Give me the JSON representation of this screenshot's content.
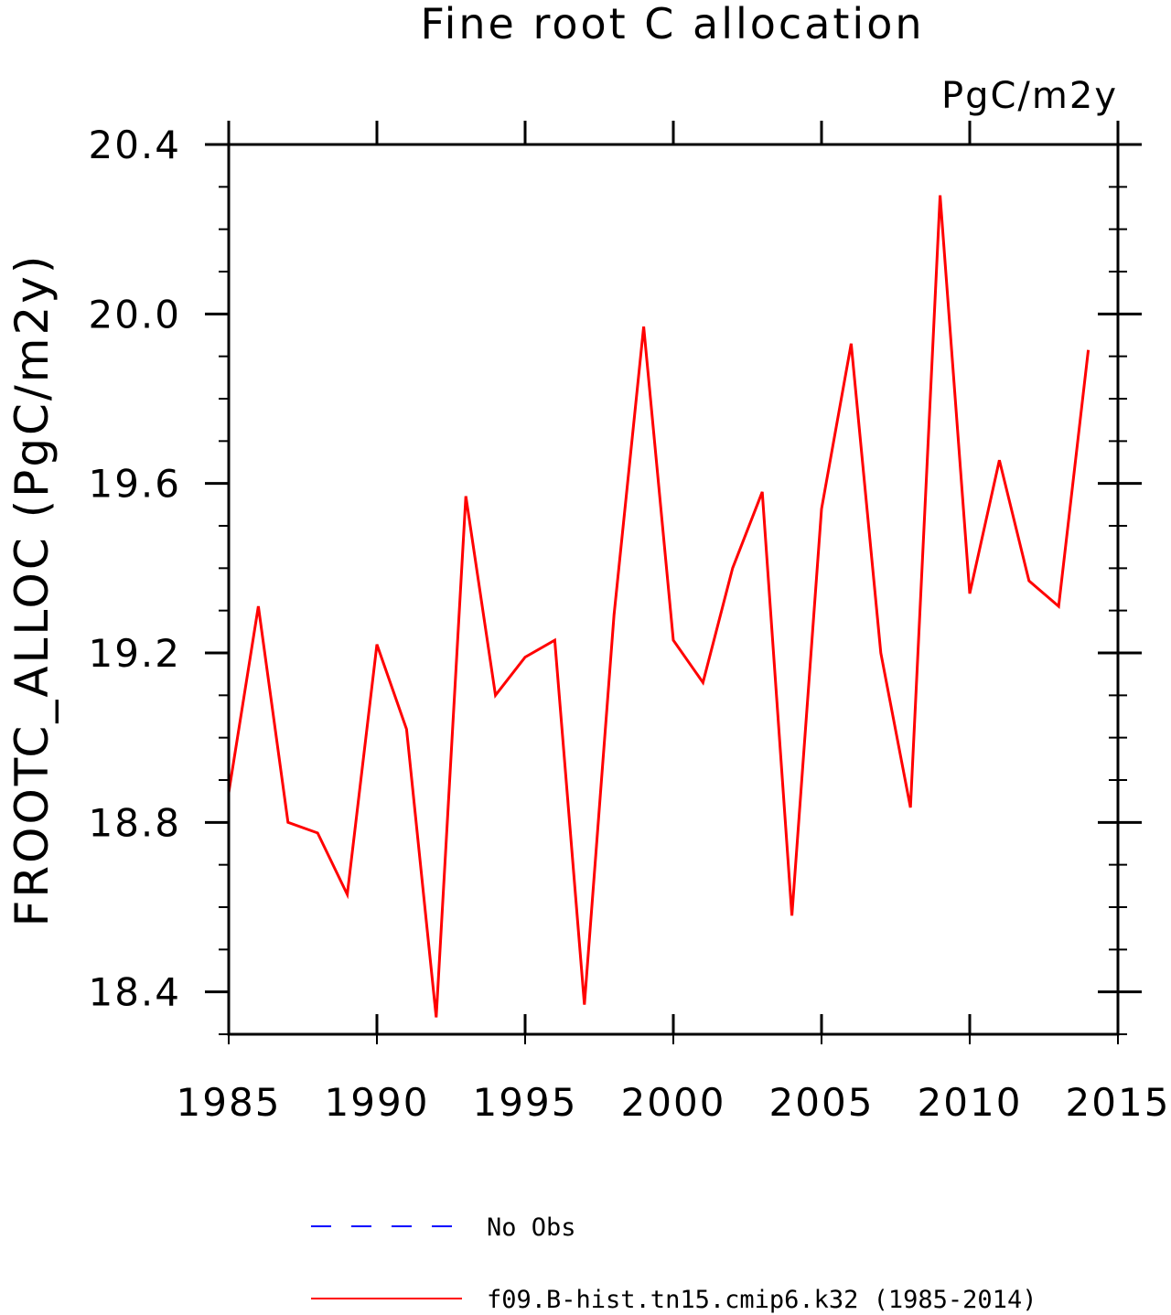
{
  "chart_data": {
    "type": "line",
    "title": "Fine root C allocation",
    "units": "PgC/m2y",
    "ylabel": "FROOTC_ALLOC  (PgC/m2y)",
    "xlabel": "",
    "xlim": [
      1985,
      2015
    ],
    "ylim": [
      18.3,
      20.4
    ],
    "x_ticks": [
      1985,
      1990,
      1995,
      2000,
      2005,
      2010,
      2015
    ],
    "x_tick_labels": [
      "1985",
      "1990",
      "1995",
      "2000",
      "2005",
      "2010",
      "2015"
    ],
    "y_ticks": [
      18.4,
      18.8,
      19.2,
      19.6,
      20.0,
      20.4
    ],
    "y_tick_labels": [
      "18.4",
      "18.8",
      "19.2",
      "19.6",
      "20.0",
      "20.4"
    ],
    "grid": false,
    "legend_position": "bottom",
    "legend": [
      {
        "label": "No Obs",
        "color": "#0000ff",
        "style": "dashed"
      },
      {
        "label": "f09.B-hist.tn15.cmip6.k32 (1985-2014)",
        "color": "#ff0000",
        "style": "solid"
      }
    ],
    "series": [
      {
        "name": "f09.B-hist.tn15.cmip6.k32 (1985-2014)",
        "color": "#ff0000",
        "x": [
          1985,
          1986,
          1987,
          1988,
          1989,
          1990,
          1991,
          1992,
          1993,
          1994,
          1995,
          1996,
          1997,
          1998,
          1999,
          2000,
          2001,
          2002,
          2003,
          2004,
          2005,
          2006,
          2007,
          2008,
          2009,
          2010,
          2011,
          2012,
          2013,
          2014
        ],
        "values": [
          18.87,
          19.31,
          18.8,
          18.775,
          18.63,
          19.22,
          19.02,
          18.34,
          19.57,
          19.1,
          19.19,
          19.23,
          18.37,
          19.29,
          19.97,
          19.23,
          19.13,
          19.4,
          19.58,
          18.58,
          19.54,
          19.93,
          19.2,
          18.835,
          20.28,
          19.34,
          19.655,
          19.37,
          19.31,
          19.915
        ]
      }
    ]
  }
}
